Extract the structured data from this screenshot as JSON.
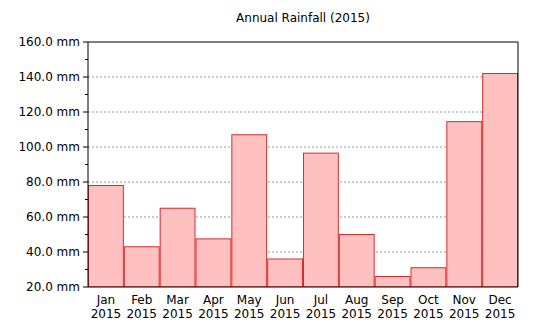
{
  "chart_data": {
    "type": "bar",
    "title": "Annual Rainfall (2015)",
    "categories": [
      "Jan 2015",
      "Feb 2015",
      "Mar 2015",
      "Apr 2015",
      "May 2015",
      "Jun 2015",
      "Jul 2015",
      "Aug 2015",
      "Sep 2015",
      "Oct 2015",
      "Nov 2015",
      "Dec 2015"
    ],
    "values": [
      78,
      43,
      65,
      47.5,
      107,
      36,
      96.5,
      50,
      26,
      31,
      114.5,
      142
    ],
    "color": "#ffc0c0",
    "ylim": [
      20,
      160
    ],
    "yticks": [
      {
        "value": 20,
        "label": "20.0 mm"
      },
      {
        "value": 40,
        "label": "40.0 mm"
      },
      {
        "value": 60,
        "label": "60.0 mm"
      },
      {
        "value": 80,
        "label": "80.0 mm"
      },
      {
        "value": 100,
        "label": "100.0 mm"
      },
      {
        "value": 120,
        "label": "120.0 mm"
      },
      {
        "value": 140,
        "label": "140.0 mm"
      },
      {
        "value": 160,
        "label": "160.0 mm"
      }
    ],
    "grid": true
  }
}
